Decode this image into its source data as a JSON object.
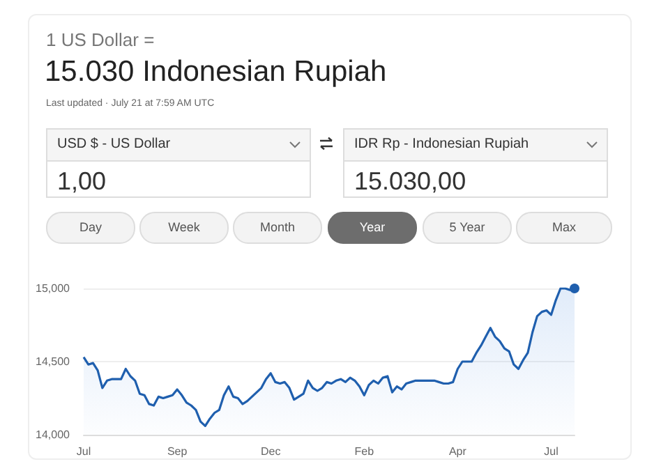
{
  "chart_data": {
    "type": "area",
    "title": "1 US Dollar =",
    "subtitle": "15.030 Indonesian Rupiah",
    "annotations": [
      "Last updated · July 21 at 7:59 AM UTC",
      "USD $ - US Dollar",
      "1,00",
      "IDR Rp - Indonesian Rupiah",
      "15.030,00",
      "Day",
      "Week",
      "Month",
      "Year",
      "5 Year",
      "Max"
    ],
    "categories": [
      "Jul",
      null,
      null,
      null,
      null,
      null,
      null,
      null,
      null,
      null,
      null,
      null,
      null,
      null,
      null,
      null,
      null,
      null,
      null,
      null,
      "Sep",
      null,
      null,
      null,
      null,
      null,
      null,
      null,
      null,
      null,
      null,
      null,
      null,
      null,
      null,
      null,
      null,
      null,
      null,
      null,
      "Dec",
      null,
      null,
      null,
      null,
      null,
      null,
      null,
      null,
      null,
      null,
      null,
      null,
      null,
      null,
      null,
      null,
      null,
      null,
      null,
      "Feb",
      null,
      null,
      null,
      null,
      null,
      null,
      null,
      null,
      null,
      null,
      null,
      null,
      null,
      null,
      null,
      null,
      null,
      null,
      null,
      "Apr",
      null,
      null,
      null,
      null,
      null,
      null,
      null,
      null,
      null,
      null,
      null,
      null,
      null,
      null,
      null,
      null,
      null,
      null,
      null,
      "Jul",
      null,
      null,
      null,
      null,
      null
    ],
    "values": [
      14530,
      14480,
      14490,
      14440,
      14320,
      14370,
      14380,
      14380,
      14380,
      14450,
      14400,
      14370,
      14280,
      14270,
      14210,
      14200,
      14260,
      14250,
      14260,
      14270,
      14310,
      14270,
      14220,
      14200,
      14170,
      14090,
      14060,
      14110,
      14150,
      14170,
      14270,
      14330,
      14260,
      14250,
      14210,
      14230,
      14260,
      14290,
      14320,
      14380,
      14420,
      14360,
      14350,
      14360,
      14320,
      14240,
      14260,
      14280,
      14370,
      14320,
      14300,
      14320,
      14360,
      14350,
      14370,
      14380,
      14360,
      14390,
      14370,
      14330,
      14270,
      14340,
      14370,
      14350,
      14390,
      14400,
      14290,
      14330,
      14310,
      14350,
      14360,
      14370,
      14370,
      14370,
      14370,
      14370,
      14360,
      14350,
      14350,
      14360,
      14450,
      14500,
      14500,
      14500,
      14560,
      14610,
      14670,
      14730,
      14670,
      14640,
      14590,
      14570,
      14480,
      14450,
      14510,
      14560,
      14700,
      14810,
      14840,
      14850,
      14820,
      14920,
      15000,
      15000,
      14990,
      15000
    ],
    "color": "#1f5fae",
    "ylim": [
      14000,
      15000
    ],
    "yticks": [
      {
        "value": 14000,
        "label": "14,000"
      },
      {
        "value": 14500,
        "label": "14,500"
      },
      {
        "value": 15000,
        "label": "15,000"
      }
    ],
    "grid": "y"
  }
}
